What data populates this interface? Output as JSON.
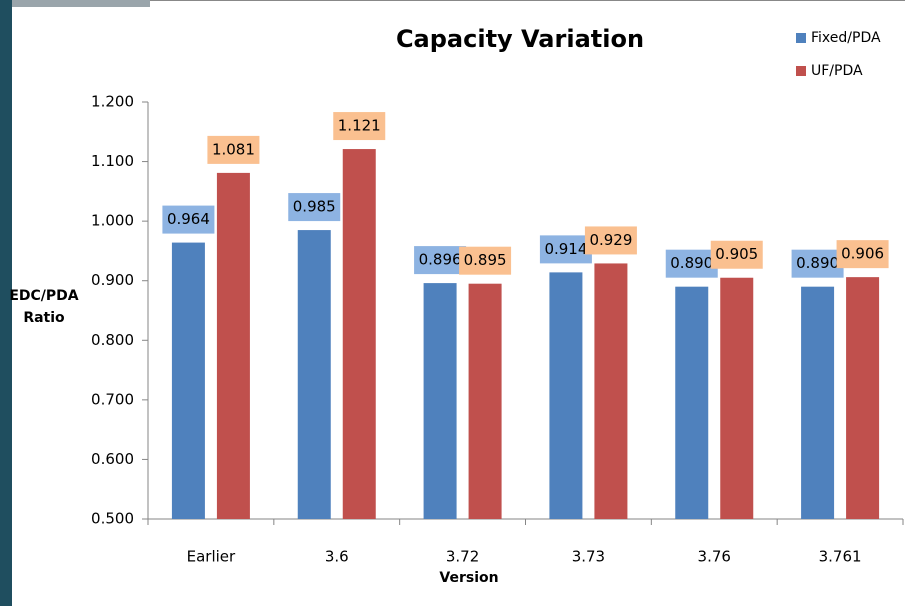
{
  "chart_data": {
    "type": "bar",
    "title": "Capacity Variation",
    "xlabel": "Version",
    "ylabel": [
      "EDC/PDA",
      "Ratio"
    ],
    "categories": [
      "Earlier",
      "3.6",
      "3.72",
      "3.73",
      "3.76",
      "3.761"
    ],
    "series": [
      {
        "name": "Fixed/PDA",
        "color": "#4f81bd",
        "label_color": "#8db3e2",
        "values": [
          0.964,
          0.985,
          0.896,
          0.914,
          0.89,
          0.89
        ],
        "value_labels": [
          "0.964",
          "0.985",
          "0.896",
          "0.914",
          "0.890",
          "0.890"
        ]
      },
      {
        "name": "UF/PDA",
        "color": "#c0504d",
        "label_color": "#fac090",
        "values": [
          1.081,
          1.121,
          0.895,
          0.929,
          0.905,
          0.906
        ],
        "value_labels": [
          "1.081",
          "1.121",
          "0.895",
          "0.929",
          "0.905",
          "0.906"
        ]
      }
    ],
    "ylim": [
      0.5,
      1.2
    ],
    "yticks": [
      {
        "value": 0.5,
        "label": "0.500"
      },
      {
        "value": 0.6,
        "label": "0.600"
      },
      {
        "value": 0.7,
        "label": "0.700"
      },
      {
        "value": 0.8,
        "label": "0.800"
      },
      {
        "value": 0.9,
        "label": "0.900"
      },
      {
        "value": 1.0,
        "label": "1.000"
      },
      {
        "value": 1.1,
        "label": "1.100"
      },
      {
        "value": 1.2,
        "label": "1.200"
      }
    ],
    "grid": false,
    "legend": "top-right"
  }
}
